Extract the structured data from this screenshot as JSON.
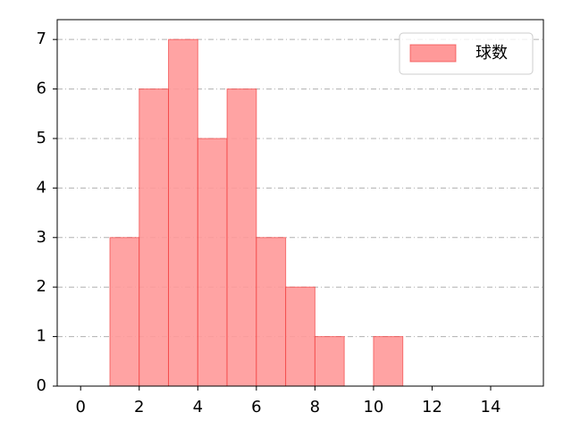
{
  "chart_data": {
    "type": "histogram",
    "bins": [
      1,
      2,
      3,
      4,
      5,
      6,
      7,
      8,
      9,
      10,
      11
    ],
    "series": [
      {
        "name": "球数",
        "color": "#ff9999",
        "values": [
          3,
          6,
          7,
          5,
          6,
          3,
          2,
          1,
          0,
          1
        ]
      }
    ],
    "xlim": [
      -0.8,
      15.8
    ],
    "xticks": [
      0,
      2,
      4,
      6,
      8,
      10,
      12,
      14
    ],
    "ylim": [
      0,
      7.4
    ],
    "yticks": [
      0,
      1,
      2,
      3,
      4,
      5,
      6,
      7
    ],
    "grid": true,
    "legend": "upper right"
  }
}
